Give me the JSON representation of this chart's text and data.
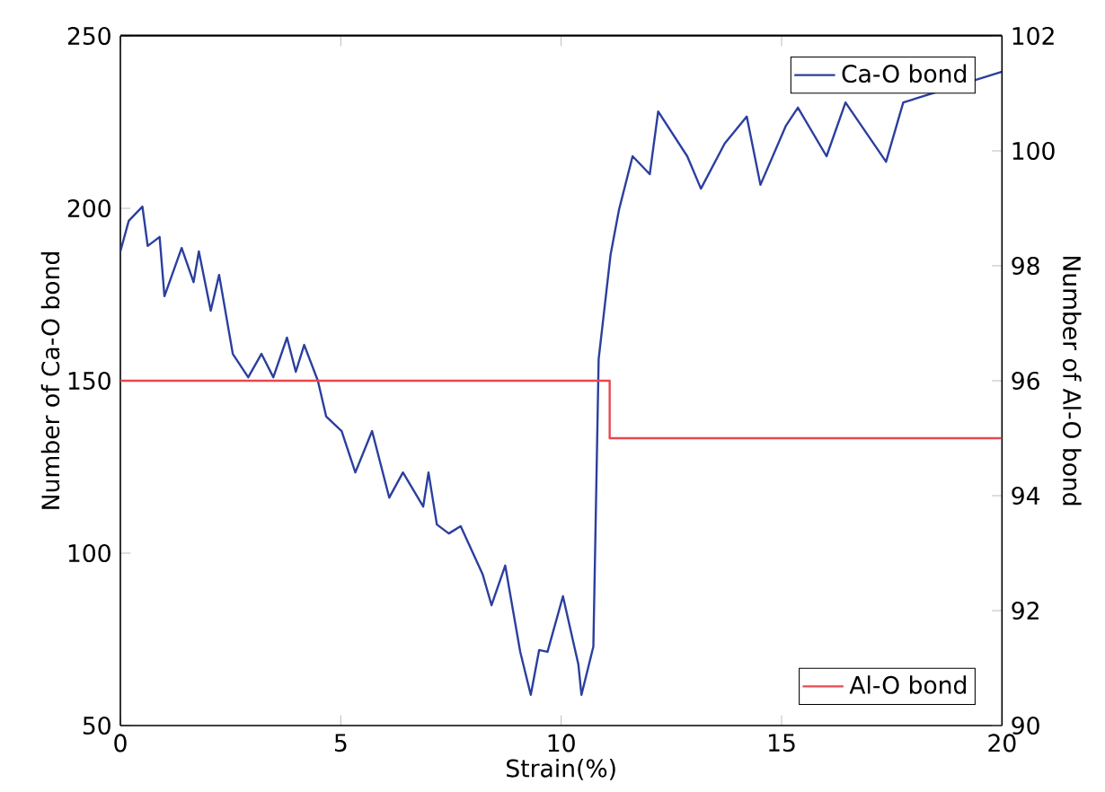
{
  "chart_data": {
    "type": "line",
    "xlabel": "Strain(%)",
    "ylabel": "Number of Ca-O bond",
    "y2label": "Number of Al-O bond",
    "xlim": [
      0,
      20
    ],
    "xticks": [
      0,
      5,
      10,
      15,
      20
    ],
    "ylim": [
      50,
      250
    ],
    "yticks": [
      50,
      100,
      150,
      200,
      250
    ],
    "y2lim": [
      90,
      102
    ],
    "y2ticks": [
      90,
      92,
      94,
      96,
      98,
      100,
      102
    ],
    "legend": "top right",
    "grid": false,
    "marker": "none",
    "line_style": "solid",
    "series": [
      {
        "name": "Ca-O bond",
        "color": "#2b3f9e",
        "x": [
          0,
          0.19,
          0.5,
          0.62,
          0.89,
          1.0,
          1.39,
          1.66,
          1.78,
          2.05,
          2.24,
          2.55,
          2.9,
          3.2,
          3.47,
          3.78,
          3.98,
          4.17,
          4.48,
          4.67,
          5.02,
          5.33,
          5.71,
          6.1,
          6.41,
          6.87,
          6.99,
          7.18,
          7.45,
          7.72,
          8.22,
          8.42,
          8.73,
          9.07,
          9.31,
          9.5,
          9.69,
          10.04,
          10.39,
          10.46,
          10.73,
          10.85,
          11.12,
          11.31,
          11.62,
          12.01,
          12.2,
          12.86,
          13.17,
          13.71,
          14.21,
          14.52,
          15.1,
          15.37,
          16.02,
          16.45,
          16.83,
          17.37,
          17.76,
          20
        ],
        "values": [
          187.5,
          196.4,
          200.5,
          189.1,
          191.7,
          174.5,
          188.5,
          178.6,
          187.5,
          170.3,
          180.7,
          157.8,
          151.0,
          157.8,
          151.0,
          162.5,
          152.6,
          160.4,
          150.0,
          139.6,
          135.4,
          123.4,
          135.4,
          116.1,
          123.4,
          113.5,
          123.4,
          108.3,
          105.7,
          107.8,
          93.8,
          84.9,
          96.4,
          71.4,
          58.9,
          71.9,
          71.4,
          87.5,
          67.7,
          58.9,
          72.9,
          156.3,
          186.5,
          199.5,
          215.1,
          209.9,
          228.1,
          215.1,
          205.7,
          218.8,
          226.6,
          206.8,
          224.0,
          229.2,
          215.1,
          230.7,
          null,
          213.5,
          230.7,
          239.6
        ]
      },
      {
        "name": "Al-O bond",
        "color": "#e8474f",
        "axis": "y2",
        "type": "step",
        "x": [
          0,
          11.1,
          20
        ],
        "values": [
          96,
          95,
          95
        ]
      }
    ]
  }
}
